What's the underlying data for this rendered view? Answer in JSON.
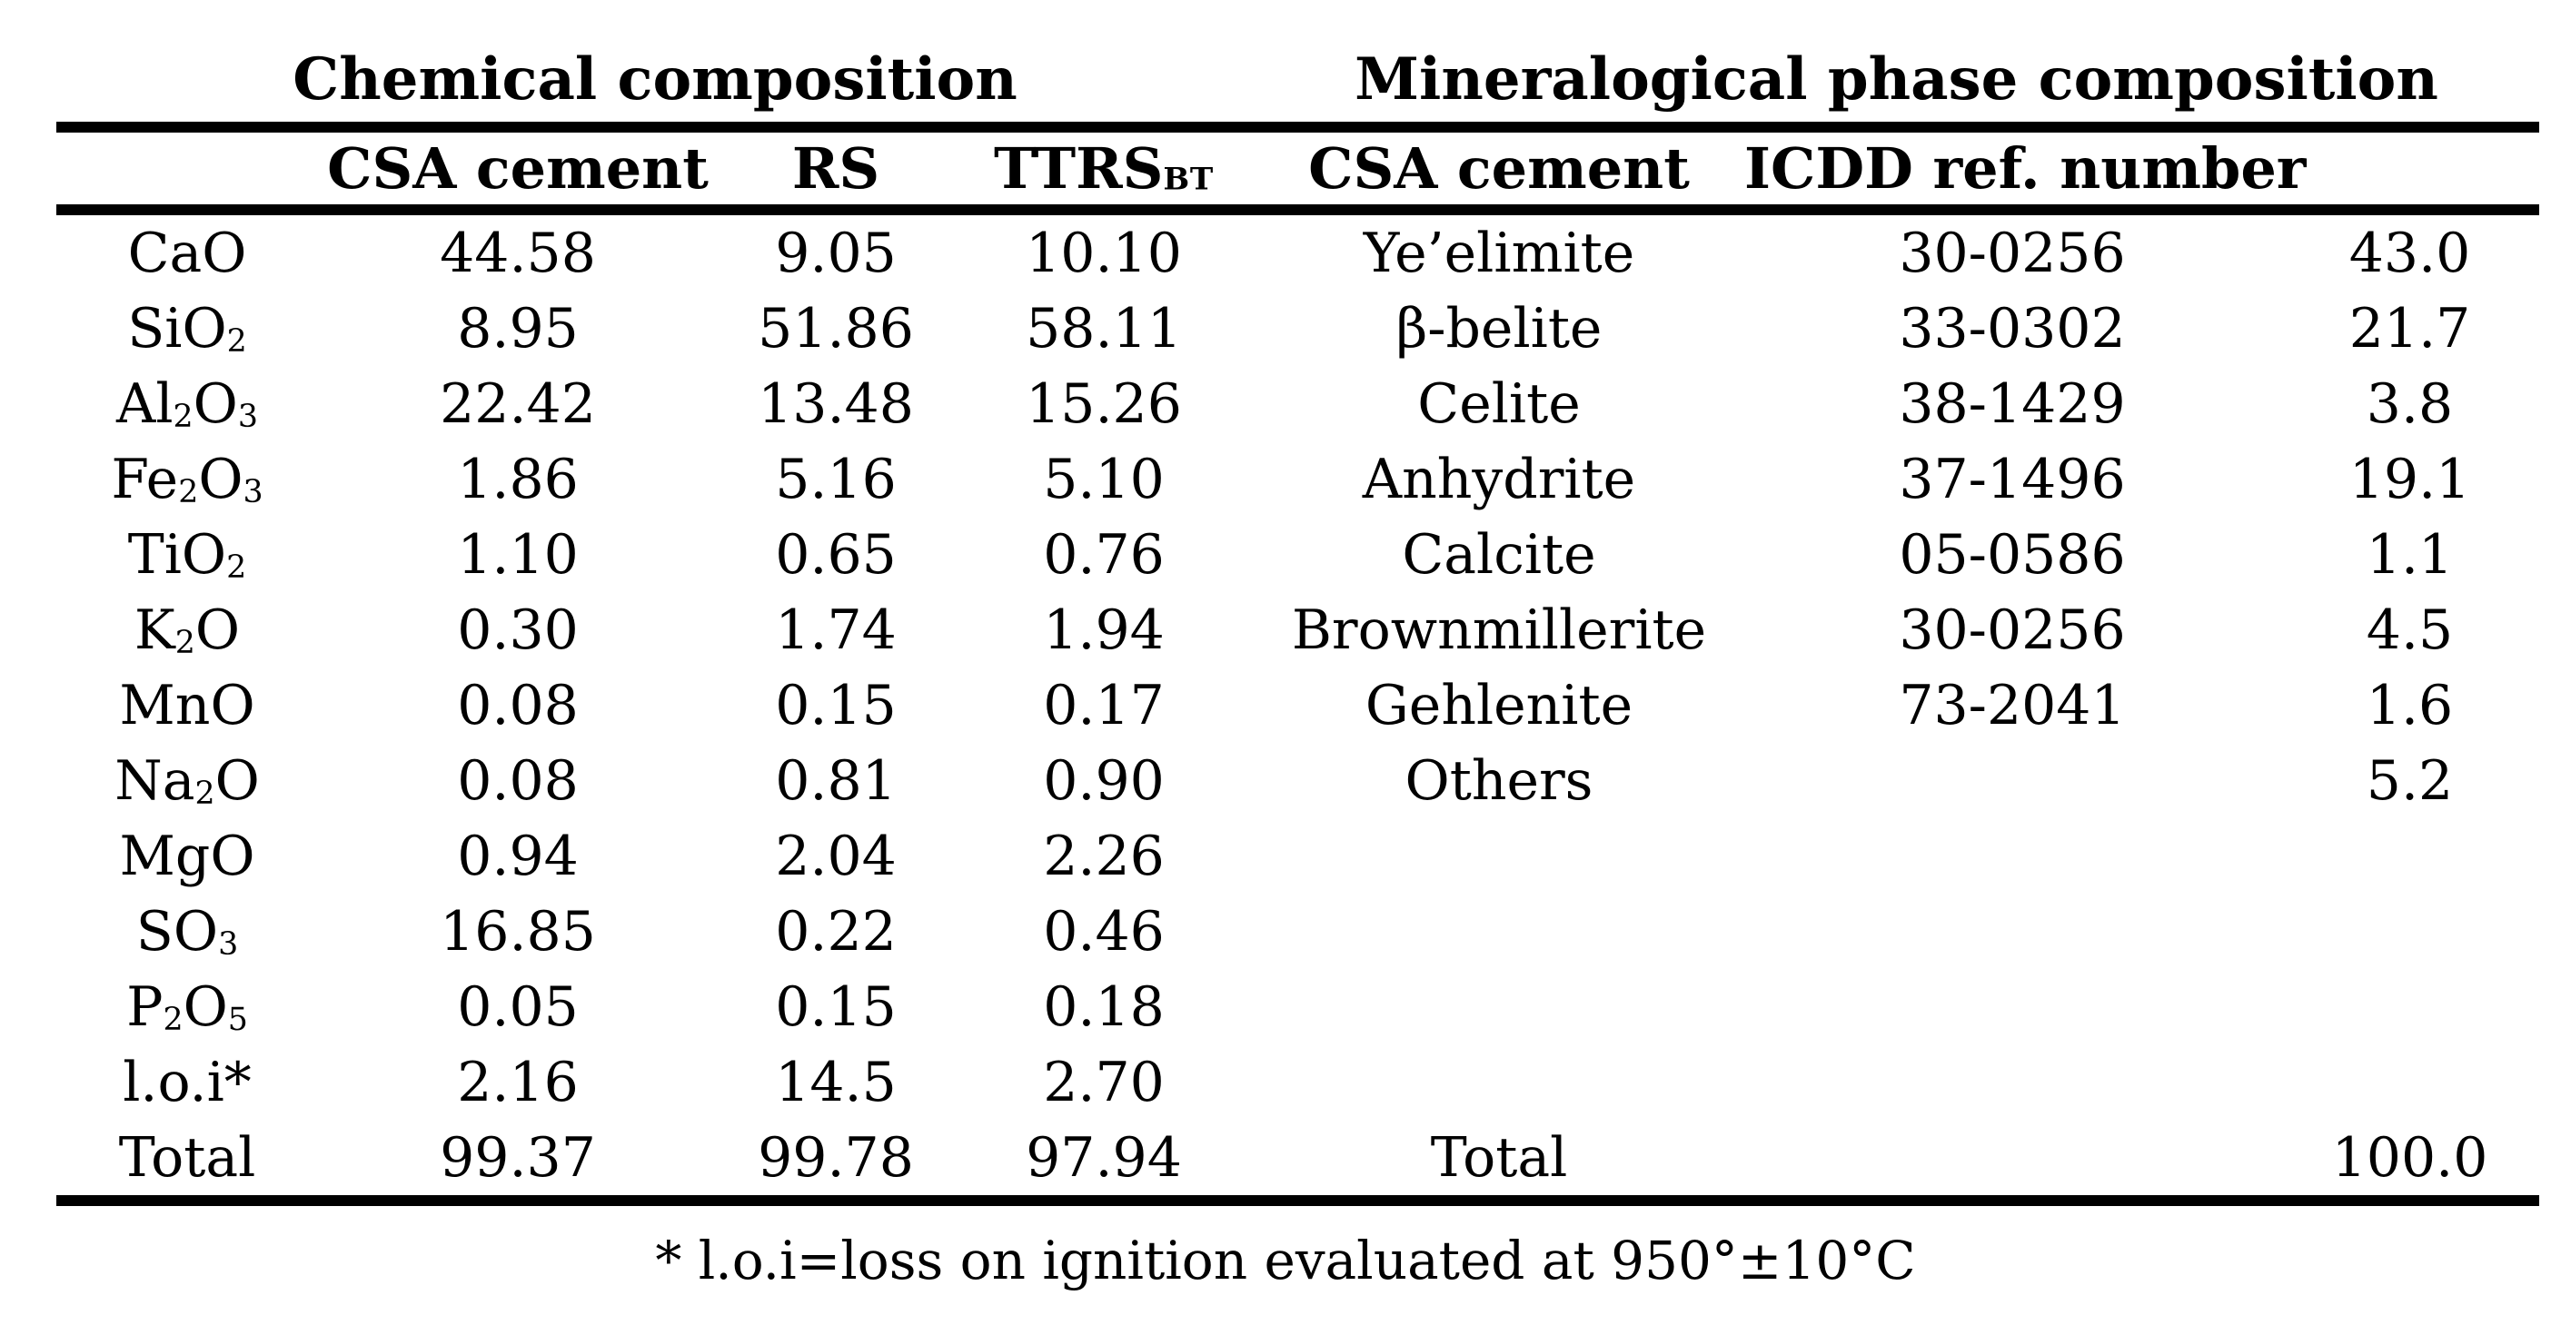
{
  "table": {
    "section_headers": {
      "chemical": "Chemical composition",
      "mineralogical": "Mineralogical phase composition"
    },
    "columns": {
      "chem_sample_1": "CSA cement",
      "chem_sample_2": "RS",
      "chem_sample_3": {
        "base": "TTRS",
        "sub": "BT"
      },
      "min_phase": "CSA cement",
      "min_ref": "ICDD ref. number"
    },
    "chem_rows": [
      {
        "label": [
          {
            "t": "CaO"
          }
        ],
        "csa": "44.58",
        "rs": "9.05",
        "ttrs": "10.10"
      },
      {
        "label": [
          {
            "t": "SiO"
          },
          {
            "sub": "2"
          }
        ],
        "csa": "8.95",
        "rs": "51.86",
        "ttrs": "58.11"
      },
      {
        "label": [
          {
            "t": "Al"
          },
          {
            "sub": "2"
          },
          {
            "t": "O"
          },
          {
            "sub": "3"
          }
        ],
        "csa": "22.42",
        "rs": "13.48",
        "ttrs": "15.26"
      },
      {
        "label": [
          {
            "t": "Fe"
          },
          {
            "sub": "2"
          },
          {
            "t": "O"
          },
          {
            "sub": "3"
          }
        ],
        "csa": "1.86",
        "rs": "5.16",
        "ttrs": "5.10"
      },
      {
        "label": [
          {
            "t": "TiO"
          },
          {
            "sub": "2"
          }
        ],
        "csa": "1.10",
        "rs": "0.65",
        "ttrs": "0.76"
      },
      {
        "label": [
          {
            "t": "K"
          },
          {
            "sub": "2"
          },
          {
            "t": "O"
          }
        ],
        "csa": "0.30",
        "rs": "1.74",
        "ttrs": "1.94"
      },
      {
        "label": [
          {
            "t": "MnO"
          }
        ],
        "csa": "0.08",
        "rs": "0.15",
        "ttrs": "0.17"
      },
      {
        "label": [
          {
            "t": "Na"
          },
          {
            "sub": "2"
          },
          {
            "t": "O"
          }
        ],
        "csa": "0.08",
        "rs": "0.81",
        "ttrs": "0.90"
      },
      {
        "label": [
          {
            "t": "MgO"
          }
        ],
        "csa": "0.94",
        "rs": "2.04",
        "ttrs": "2.26"
      },
      {
        "label": [
          {
            "t": "SO"
          },
          {
            "sub": "3"
          }
        ],
        "csa": "16.85",
        "rs": "0.22",
        "ttrs": "0.46"
      },
      {
        "label": [
          {
            "t": "P"
          },
          {
            "sub": "2"
          },
          {
            "t": "O"
          },
          {
            "sub": "5"
          }
        ],
        "csa": "0.05",
        "rs": "0.15",
        "ttrs": "0.18"
      },
      {
        "label": [
          {
            "t": "l.o.i*"
          }
        ],
        "csa": "2.16",
        "rs": "14.5",
        "ttrs": "2.70"
      }
    ],
    "chem_total": {
      "label": [
        {
          "t": "Total"
        }
      ],
      "csa": "99.37",
      "rs": "99.78",
      "ttrs": "97.94"
    },
    "min_rows": [
      {
        "phase": "Ye’elimite",
        "ref": "30-0256",
        "amount": "43.0"
      },
      {
        "phase": "β-belite",
        "ref": "33-0302",
        "amount": "21.7"
      },
      {
        "phase": "Celite",
        "ref": "38-1429",
        "amount": "3.8"
      },
      {
        "phase": "Anhydrite",
        "ref": "37-1496",
        "amount": "19.1"
      },
      {
        "phase": "Calcite",
        "ref": "05-0586",
        "amount": "1.1"
      },
      {
        "phase": "Brownmillerite",
        "ref": "30-0256",
        "amount": "4.5"
      },
      {
        "phase": "Gehlenite",
        "ref": "73-2041",
        "amount": "1.6"
      },
      {
        "phase": "Others",
        "ref": "",
        "amount": "5.2"
      }
    ],
    "min_total": {
      "phase": "Total",
      "ref": "",
      "amount": "100.0"
    },
    "footnote": "* l.o.i=loss on ignition evaluated at 950°±10°C"
  }
}
